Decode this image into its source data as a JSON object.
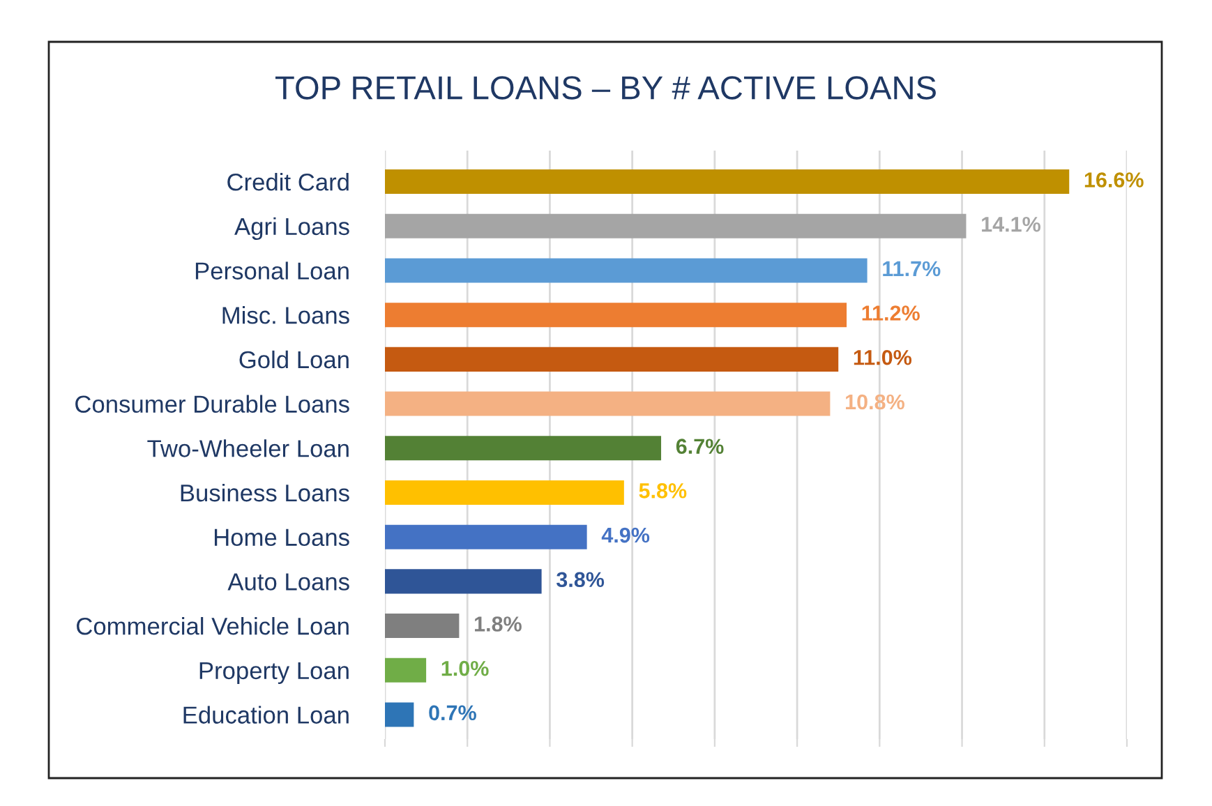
{
  "chart_data": {
    "type": "bar",
    "orientation": "horizontal",
    "title": "TOP RETAIL LOANS – BY # ACTIVE LOANS",
    "categories": [
      "Credit Card",
      "Agri Loans",
      "Personal Loan",
      "Misc. Loans",
      "Gold Loan",
      "Consumer Durable Loans",
      "Two-Wheeler Loan",
      "Business Loans",
      "Home Loans",
      "Auto Loans",
      "Commercial Vehicle Loan",
      "Property Loan",
      "Education Loan"
    ],
    "values": [
      16.6,
      14.1,
      11.7,
      11.2,
      11.0,
      10.8,
      6.7,
      5.8,
      4.9,
      3.8,
      1.8,
      1.0,
      0.7
    ],
    "value_labels": [
      "16.6%",
      "14.1%",
      "11.7%",
      "11.2%",
      "11.0%",
      "10.8%",
      "6.7%",
      "5.8%",
      "4.9%",
      "3.8%",
      "1.8%",
      "1.0%",
      "0.7%"
    ],
    "colors": [
      "#bf9000",
      "#a5a5a5",
      "#5b9bd5",
      "#ed7d31",
      "#c55a11",
      "#f4b183",
      "#538135",
      "#ffc000",
      "#4472c4",
      "#2f5597",
      "#7f7f7f",
      "#70ad47",
      "#2e75b6"
    ],
    "xlim": [
      0,
      18
    ],
    "xticks": [
      {
        "value": 0,
        "label": null
      },
      {
        "value": 2,
        "label": null
      },
      {
        "value": 4,
        "label": null
      },
      {
        "value": 6,
        "label": null
      },
      {
        "value": 8,
        "label": null
      },
      {
        "value": 10,
        "label": null
      },
      {
        "value": 12,
        "label": null
      },
      {
        "value": 14,
        "label": null
      },
      {
        "value": 16,
        "label": null
      },
      {
        "value": 18,
        "label": null
      }
    ],
    "tick_labels": "y",
    "grid": "x",
    "legend": false
  }
}
